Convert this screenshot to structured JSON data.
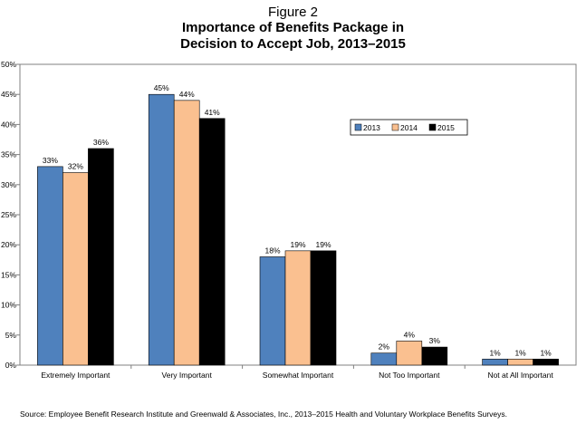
{
  "figure": {
    "label": "Figure 2",
    "title_line1": "Importance of Benefits Package in",
    "title_line2": "Decision to Accept Job, 2013–2015",
    "source": "Source: Employee Benefit Research Institute and Greenwald & Associates, Inc., 2013–2015 Health and Voluntary Workplace Benefits Surveys."
  },
  "chart_data": {
    "type": "bar",
    "title": "Importance of Benefits Package in Decision to Accept Job, 2013–2015",
    "categories": [
      "Extremely Important",
      "Very Important",
      "Somewhat Important",
      "Not Too Important",
      "Not at All Important"
    ],
    "series": [
      {
        "name": "2013",
        "values": [
          33,
          45,
          18,
          2,
          1
        ],
        "color": "#4f81bd"
      },
      {
        "name": "2014",
        "values": [
          32,
          44,
          19,
          4,
          1
        ],
        "color": "#fac090"
      },
      {
        "name": "2015",
        "values": [
          36,
          41,
          19,
          3,
          1
        ],
        "color": "#000000"
      }
    ],
    "data_labels": [
      [
        "33%",
        "45%",
        "18%",
        "2%",
        "1%"
      ],
      [
        "32%",
        "44%",
        "19%",
        "4%",
        "1%"
      ],
      [
        "36%",
        "41%",
        "19%",
        "3%",
        "1%"
      ]
    ],
    "y_ticks": [
      "0%",
      "5%",
      "10%",
      "15%",
      "20%",
      "25%",
      "30%",
      "35%",
      "40%",
      "45%",
      "50%"
    ],
    "ylim": [
      0,
      50
    ],
    "xlabel": "",
    "ylabel": "",
    "grid": false,
    "legend_position": "top-right"
  }
}
